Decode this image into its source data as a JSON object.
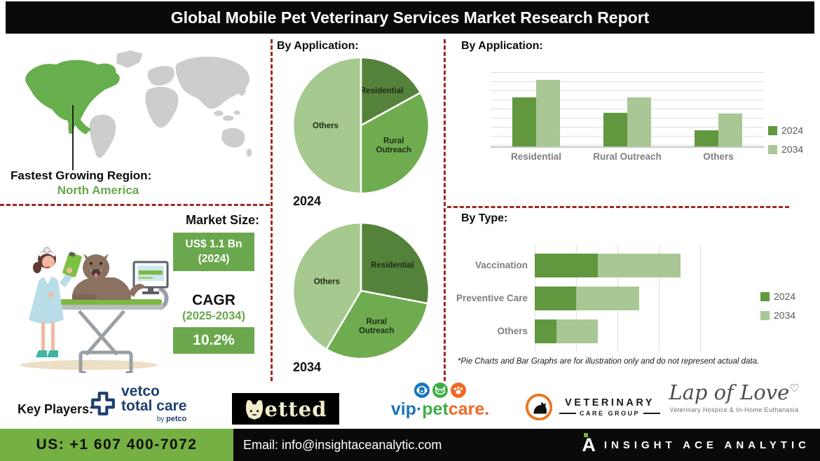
{
  "banner": {
    "title": "Global Mobile Pet Veterinary Services Market Research Report"
  },
  "colors": {
    "dark_green": "#55823B",
    "mid_green": "#6FAC50",
    "light_green": "#A6C98F",
    "series_2024": "#61973E",
    "series_2034": "#A9C795",
    "accent_green": "#6BA84D",
    "footer_green": "#75B043",
    "dashed_red": "#9C2A22",
    "map_gray": "#CDCDCD",
    "map_green": "#67AE4D",
    "vip_blue": "#1B75BB",
    "vip_green": "#3FAE49",
    "vip_orange": "#F26822",
    "vetco_navy": "#1E3F6F",
    "vcg_orange": "#E87722"
  },
  "region": {
    "label": "Fastest Growing Region:",
    "value": "North America"
  },
  "market": {
    "size_label": "Market Size:",
    "size_value": "US$ 1.1 Bn",
    "size_year": "(2024)",
    "cagr_label": "CAGR",
    "cagr_period": "(2025-2034)",
    "cagr_value": "10.2%"
  },
  "sections": {
    "pie_title": "By Application:",
    "bar_title": "By Application:",
    "type_title": "By Type:",
    "footnote": "*Pie Charts and Bar Graphs are for illustration only and do not represent actual data."
  },
  "chart_data": [
    {
      "type": "pie",
      "title": "By Application:",
      "year_label": "2024",
      "legend_position": "none",
      "slices": [
        {
          "label": "Residential",
          "value": 17,
          "color": "dark_green"
        },
        {
          "label": "Rural Outreach",
          "value": 33,
          "color": "mid_green"
        },
        {
          "label": "Others",
          "value": 50,
          "color": "light_green"
        }
      ]
    },
    {
      "type": "pie",
      "title": "By Application:",
      "year_label": "2034",
      "legend_position": "none",
      "slices": [
        {
          "label": "Residential",
          "value": 28,
          "color": "dark_green"
        },
        {
          "label": "Rural Outreach",
          "value": 30.5,
          "color": "mid_green"
        },
        {
          "label": "Others",
          "value": 41.5,
          "color": "light_green"
        }
      ]
    },
    {
      "type": "bar",
      "title": "By Application:",
      "categories": [
        "Residential",
        "Rural Outreach",
        "Others"
      ],
      "series": [
        {
          "name": "2024",
          "color": "series_2024",
          "values": [
            0.66,
            0.45,
            0.22
          ]
        },
        {
          "name": "2034",
          "color": "series_2034",
          "values": [
            0.9,
            0.66,
            0.44
          ]
        }
      ],
      "ylim": [
        0,
        1
      ],
      "grid": "horizontal",
      "legend_position": "right"
    },
    {
      "type": "bar",
      "orientation": "horizontal",
      "stacked": true,
      "title": "By Type:",
      "categories": [
        "Vaccination",
        "Preventive Care",
        "Others"
      ],
      "series": [
        {
          "name": "2024",
          "color": "series_2024",
          "values": [
            0.38,
            0.25,
            0.13
          ]
        },
        {
          "name": "2034",
          "color": "series_2034",
          "values": [
            0.5,
            0.38,
            0.25
          ]
        }
      ],
      "xlim": [
        0,
        1
      ],
      "grid": "vertical",
      "legend_position": "right"
    }
  ],
  "key_players": {
    "label": "Key Players:",
    "vetco": {
      "name": "Vetco Total Care",
      "line1": "vetco",
      "line2": "total care",
      "byline_prefix": "by ",
      "byline_brand": "petco"
    },
    "vetted": {
      "name": "Vetted",
      "wordmark": "etted"
    },
    "vip_petcare": {
      "name": "VIP Petcare",
      "part1": "vip",
      "dot": "·",
      "part2": "pet",
      "part3": "care."
    },
    "vcg": {
      "name": "Veterinary Care Group",
      "line1": "VETERINARY",
      "line2": "CARE GROUP"
    },
    "lap_of_love": {
      "name": "Lap of Love",
      "wordmark": "Lap of Love",
      "heart": "♡",
      "tagline": "Veterinary Hospice & In-Home Euthanasia"
    }
  },
  "footer": {
    "phone": "US: +1 607 400-7072",
    "email": "Email: info@insightaceanalytic.com",
    "brand": "INSIGHT ACE ANALYTIC",
    "brand_initial": "A"
  }
}
